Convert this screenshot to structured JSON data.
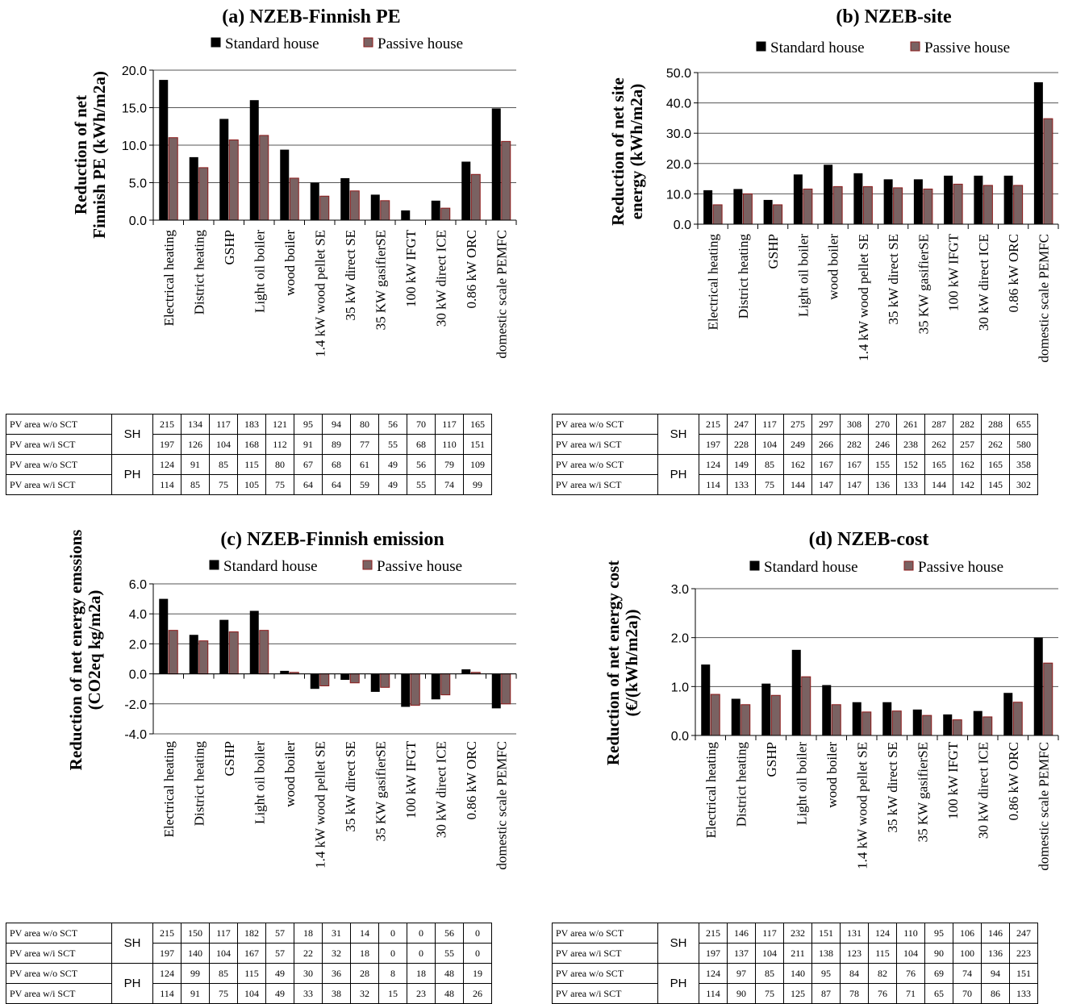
{
  "colors": {
    "standard": "#000000",
    "passive": "#7a6262",
    "passive_edge": "#8c1a1a"
  },
  "legend": {
    "standard": "Standard house",
    "passive": "Passive house"
  },
  "categories": [
    "Electrical heating",
    "District heating",
    "GSHP",
    "Light oil boiler",
    "wood boiler",
    "1.4 kW wood pellet SE",
    "35 kW direct SE",
    "35 KW gasifierSE",
    "100 kW IFGT",
    "30 kW direct ICE",
    "0.86 kW ORC",
    "domestic scale PEMFC"
  ],
  "table_labels": {
    "wo": "PV area w/o SCT",
    "wi": "PV area w/i SCT",
    "sh": "SH",
    "ph": "PH"
  },
  "chart_data": [
    {
      "type": "bar",
      "title": "(a) NZEB-Finnish PE",
      "ylabel": [
        "Reduction of net",
        "Finnish PE (kWh/m2a)"
      ],
      "ylim": [
        0,
        20
      ],
      "yticks": [
        "0.0",
        "5.0",
        "10.0",
        "15.0",
        "20.0"
      ],
      "series": [
        {
          "name": "Standard house",
          "values": [
            18.7,
            8.4,
            13.5,
            16.0,
            9.4,
            5.0,
            5.6,
            3.4,
            1.3,
            2.6,
            7.8,
            14.9
          ]
        },
        {
          "name": "Passive house",
          "values": [
            11.0,
            7.0,
            10.7,
            11.3,
            5.6,
            3.2,
            3.9,
            2.6,
            0.0,
            1.6,
            6.1,
            10.5
          ]
        }
      ],
      "table": {
        "sh_wo": [
          "215",
          "134",
          "117",
          "183",
          "121",
          "95",
          "94",
          "80",
          "56",
          "70",
          "117",
          "165"
        ],
        "sh_wi": [
          "197",
          "126",
          "104",
          "168",
          "112",
          "91",
          "89",
          "77",
          "55",
          "68",
          "110",
          "151"
        ],
        "ph_wo": [
          "124",
          "91",
          "85",
          "115",
          "80",
          "67",
          "68",
          "61",
          "49",
          "56",
          "79",
          "109"
        ],
        "ph_wi": [
          "114",
          "85",
          "75",
          "105",
          "75",
          "64",
          "64",
          "59",
          "49",
          "55",
          "74",
          "99"
        ]
      }
    },
    {
      "type": "bar",
      "title": "(b) NZEB-site",
      "ylabel": [
        "Reduction of net site",
        "energy (kWh/m2a)"
      ],
      "ylim": [
        0,
        50
      ],
      "yticks": [
        "0.0",
        "10.0",
        "20.0",
        "30.0",
        "40.0",
        "50.0"
      ],
      "series": [
        {
          "name": "Standard house",
          "values": [
            11.2,
            11.6,
            8.0,
            16.4,
            19.6,
            16.8,
            14.8,
            14.8,
            16.0,
            16.0,
            16.0,
            46.8
          ]
        },
        {
          "name": "Passive house",
          "values": [
            6.4,
            10.0,
            6.4,
            11.6,
            12.4,
            12.4,
            12.0,
            11.6,
            13.2,
            12.8,
            12.8,
            34.8
          ]
        }
      ],
      "table": {
        "sh_wo": [
          "215",
          "247",
          "117",
          "275",
          "297",
          "308",
          "270",
          "261",
          "287",
          "282",
          "288",
          "655"
        ],
        "sh_wi": [
          "197",
          "228",
          "104",
          "249",
          "266",
          "282",
          "246",
          "238",
          "262",
          "257",
          "262",
          "580"
        ],
        "ph_wo": [
          "124",
          "149",
          "85",
          "162",
          "167",
          "167",
          "155",
          "152",
          "165",
          "162",
          "165",
          "358"
        ],
        "ph_wi": [
          "114",
          "133",
          "75",
          "144",
          "147",
          "147",
          "136",
          "133",
          "144",
          "142",
          "145",
          "302"
        ]
      }
    },
    {
      "type": "bar",
      "title": "(c) NZEB-Finnish emission",
      "ylabel": [
        "Reduction of net energy emssions",
        "(CO2eq kg/m2a)"
      ],
      "ylim": [
        -4,
        6
      ],
      "yticks": [
        "-4.0",
        "-2.0",
        "0.0",
        "2.0",
        "4.0",
        "6.0"
      ],
      "series": [
        {
          "name": "Standard house",
          "values": [
            5.0,
            2.6,
            3.6,
            4.2,
            0.2,
            -1.0,
            -0.4,
            -1.2,
            -2.2,
            -1.7,
            0.3,
            -2.3
          ]
        },
        {
          "name": "Passive house",
          "values": [
            2.9,
            2.2,
            2.8,
            2.9,
            0.1,
            -0.8,
            -0.6,
            -0.9,
            -2.1,
            -1.4,
            0.1,
            -2.0
          ]
        }
      ],
      "table": {
        "sh_wo": [
          "215",
          "150",
          "117",
          "182",
          "57",
          "18",
          "31",
          "14",
          "0",
          "0",
          "56",
          "0"
        ],
        "sh_wi": [
          "197",
          "140",
          "104",
          "167",
          "57",
          "22",
          "32",
          "18",
          "0",
          "0",
          "55",
          "0"
        ],
        "ph_wo": [
          "124",
          "99",
          "85",
          "115",
          "49",
          "30",
          "36",
          "28",
          "8",
          "18",
          "48",
          "19"
        ],
        "ph_wi": [
          "114",
          "91",
          "75",
          "104",
          "49",
          "33",
          "38",
          "32",
          "15",
          "23",
          "48",
          "26"
        ]
      }
    },
    {
      "type": "bar",
      "title": "(d) NZEB-cost",
      "ylabel": [
        "Reduction of net energy cost",
        "(€/(kWh/m2a))"
      ],
      "ylim": [
        0,
        3
      ],
      "yticks": [
        "0.0",
        "1.0",
        "2.0",
        "3.0"
      ],
      "series": [
        {
          "name": "Standard house",
          "values": [
            1.45,
            0.75,
            1.06,
            1.75,
            1.03,
            0.68,
            0.68,
            0.53,
            0.43,
            0.5,
            0.87,
            2.0
          ]
        },
        {
          "name": "Passive house",
          "values": [
            0.84,
            0.63,
            0.82,
            1.2,
            0.63,
            0.48,
            0.5,
            0.41,
            0.32,
            0.38,
            0.68,
            1.48
          ]
        }
      ],
      "table": {
        "sh_wo": [
          "215",
          "146",
          "117",
          "232",
          "151",
          "131",
          "124",
          "110",
          "95",
          "106",
          "146",
          "247"
        ],
        "sh_wi": [
          "197",
          "137",
          "104",
          "211",
          "138",
          "123",
          "115",
          "104",
          "90",
          "100",
          "136",
          "223"
        ],
        "ph_wo": [
          "124",
          "97",
          "85",
          "140",
          "95",
          "84",
          "82",
          "76",
          "69",
          "74",
          "94",
          "151"
        ],
        "ph_wi": [
          "114",
          "90",
          "75",
          "125",
          "87",
          "78",
          "76",
          "71",
          "65",
          "70",
          "86",
          "133"
        ]
      }
    }
  ]
}
